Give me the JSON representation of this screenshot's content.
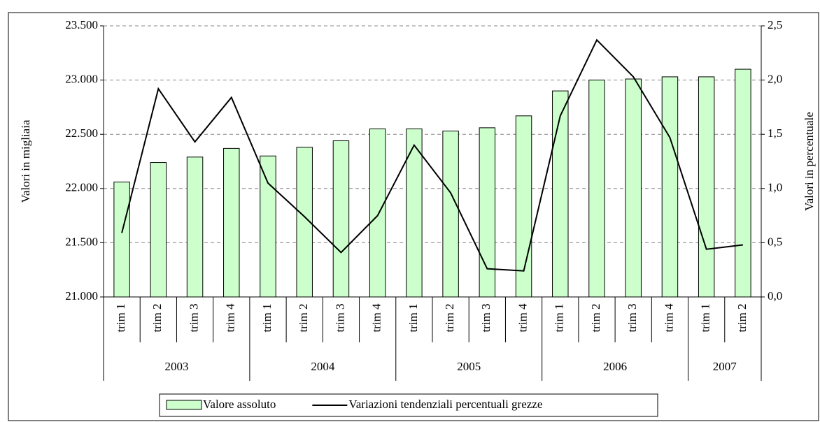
{
  "chart_data": {
    "type": "combo",
    "y_label": "Valori in migliaia",
    "y2_label": "Valori in percentuale",
    "categories": [
      "trim 1",
      "trim 2",
      "trim 3",
      "trim 4",
      "trim 1",
      "trim 2",
      "trim 3",
      "trim 4",
      "trim 1",
      "trim 2",
      "trim 3",
      "trim 4",
      "trim 1",
      "trim 2",
      "trim 3",
      "trim 4",
      "trim 1",
      "trim 2"
    ],
    "years": [
      "2003",
      "2003",
      "2003",
      "2003",
      "2004",
      "2004",
      "2004",
      "2004",
      "2005",
      "2005",
      "2005",
      "2005",
      "2006",
      "2006",
      "2006",
      "2006",
      "2007",
      "2007"
    ],
    "series": [
      {
        "name": "Valore assoluto",
        "type": "bar",
        "axis": "y",
        "color": "#ccffcc",
        "values": [
          22060,
          22240,
          22290,
          22370,
          22300,
          22380,
          22440,
          22550,
          22550,
          22530,
          22560,
          22670,
          22900,
          23000,
          23010,
          23030,
          23030,
          23100
        ]
      },
      {
        "name": "Variazioni tendenziali percentuali grezze",
        "type": "line",
        "axis": "y2",
        "color": "#000000",
        "values": [
          0.59,
          1.92,
          1.43,
          1.84,
          1.05,
          0.74,
          0.41,
          0.75,
          1.4,
          0.96,
          0.26,
          0.24,
          1.67,
          2.37,
          2.03,
          1.47,
          0.44,
          0.48
        ]
      }
    ],
    "ylim": [
      21000,
      23500
    ],
    "yticks": [
      {
        "value": 21000,
        "label": "21.000"
      },
      {
        "value": 21500,
        "label": "21.500"
      },
      {
        "value": 22000,
        "label": "22.000"
      },
      {
        "value": 22500,
        "label": "22.500"
      },
      {
        "value": 23000,
        "label": "23.000"
      },
      {
        "value": 23500,
        "label": "23.500"
      }
    ],
    "y2lim": [
      0,
      2.5
    ],
    "y2ticks": [
      {
        "value": 0,
        "label": "0,0"
      },
      {
        "value": 0.5,
        "label": "0,5"
      },
      {
        "value": 1,
        "label": "1,0"
      },
      {
        "value": 1.5,
        "label": "1,5"
      },
      {
        "value": 2,
        "label": "2,0"
      },
      {
        "value": 2.5,
        "label": "2,5"
      }
    ],
    "grid": true
  }
}
